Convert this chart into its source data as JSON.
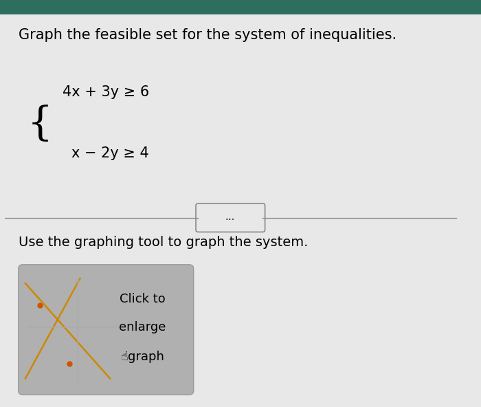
{
  "background_color": "#e8e8e8",
  "title_text": "Graph the feasible set for the system of inequalities.",
  "title_fontsize": 15,
  "title_color": "#000000",
  "ineq1": "4x + 3y ≥ 6",
  "ineq2": "x − 2y ≥ 4",
  "divider_color": "#888888",
  "subtitle_text": "Use the graphing tool to graph the system.",
  "subtitle_fontsize": 14,
  "button_text_line1": "Click to",
  "button_text_line2": "enlarge",
  "button_text_line3": "☝graph",
  "button_bg": "#b0b0b0",
  "button_text_color": "#000000",
  "button_fontsize": 13,
  "dots_ellipsis": "...",
  "header_bar_color": "#2d6e5e"
}
